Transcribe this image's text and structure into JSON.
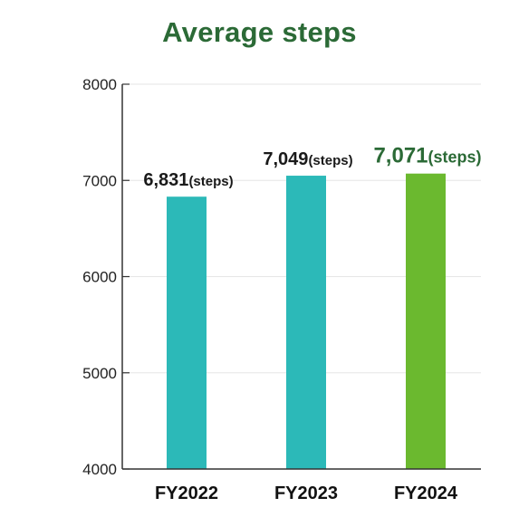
{
  "chart_data": {
    "type": "bar",
    "title": "Average steps",
    "categories": [
      "FY2022",
      "FY2023",
      "FY2024"
    ],
    "values": [
      6831,
      7049,
      7071
    ],
    "data_labels": [
      {
        "value": "6,831",
        "unit": "(steps)"
      },
      {
        "value": "7,049",
        "unit": "(steps)"
      },
      {
        "value": "7,071",
        "unit": "(steps)"
      }
    ],
    "ylim": [
      4000,
      8000
    ],
    "yticks": [
      "4000",
      "5000",
      "6000",
      "7000",
      "8000"
    ],
    "grid": true,
    "xlabel": "",
    "ylabel": "",
    "colors": {
      "title": "#2b6a36",
      "bar_default": "#2cb9b8",
      "bar_highlight": "#6bb92f",
      "label_default": "#1a1a1a",
      "label_highlight": "#2b6a36",
      "axis": "#333333",
      "grid": "#e6e6e6"
    },
    "highlight_index": 2
  }
}
